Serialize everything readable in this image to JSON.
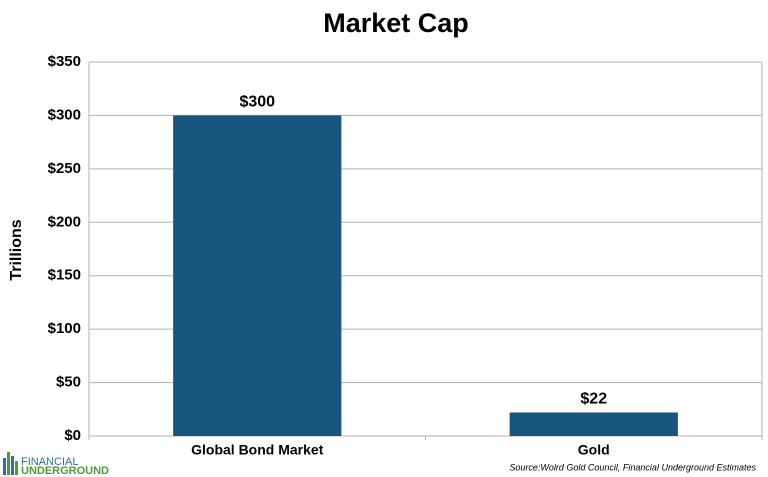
{
  "chart_data": {
    "type": "bar",
    "title": "Market Cap",
    "y_label": "Trillions",
    "categories": [
      "Global Bond Market",
      "Gold"
    ],
    "values": [
      300,
      22
    ],
    "value_labels": [
      "$300",
      "$22"
    ],
    "color": "#18557f",
    "ylim": [
      0,
      350
    ],
    "yticks": [
      {
        "value": 0,
        "label": "$0"
      },
      {
        "value": 50,
        "label": "$50"
      },
      {
        "value": 100,
        "label": "$100"
      },
      {
        "value": 150,
        "label": "$150"
      },
      {
        "value": 200,
        "label": "$200"
      },
      {
        "value": 250,
        "label": "$250"
      },
      {
        "value": 300,
        "label": "$300"
      },
      {
        "value": 350,
        "label": "$350"
      }
    ],
    "grid": true,
    "source": "Source:Wolrd Gold Council, Financial Underground Estimates"
  },
  "logo": {
    "line1": "FINANCIAL",
    "line2": "UNDERGROUND"
  }
}
